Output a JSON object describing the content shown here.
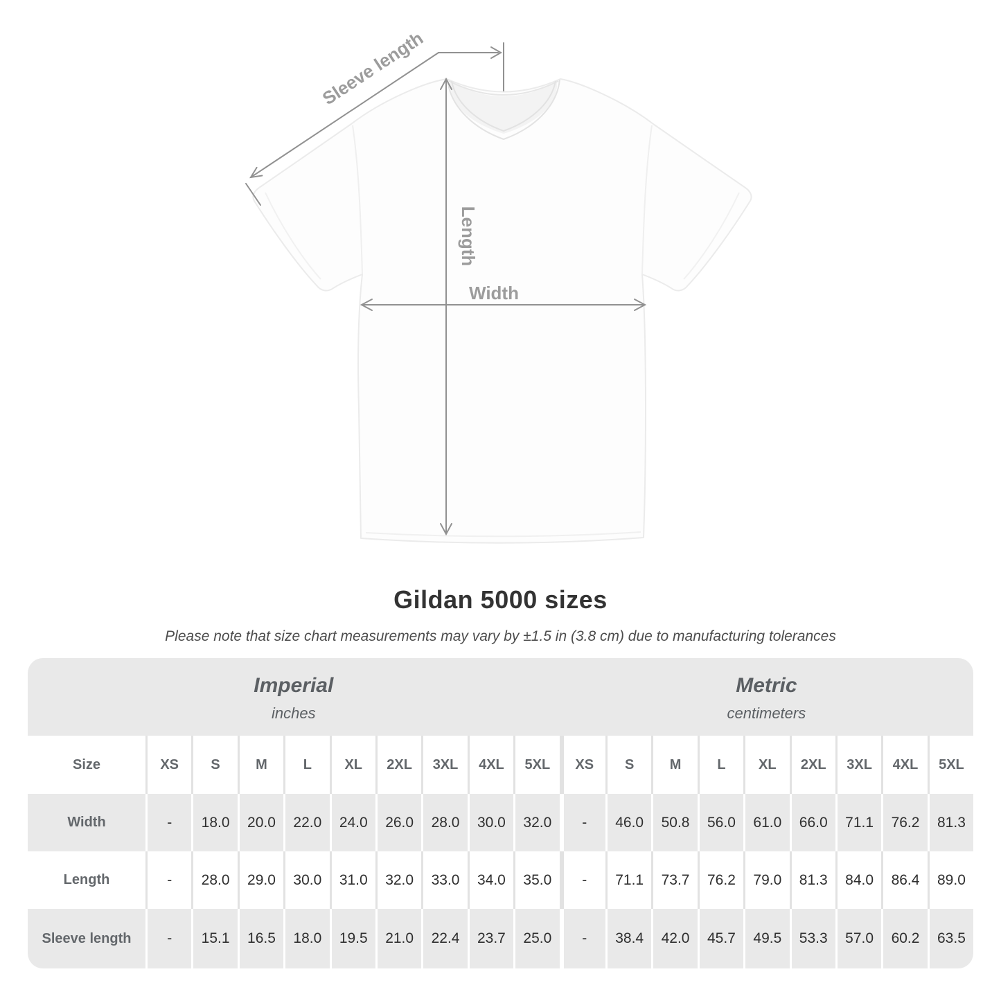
{
  "title": "Gildan 5000 sizes",
  "note": "Please note that size chart measurements may vary by ±1.5 in (3.8 cm) due to manufacturing tolerances",
  "diagram": {
    "sleeve_label": "Sleeve length",
    "length_label": "Length",
    "width_label": "Width"
  },
  "chart_data": {
    "type": "table",
    "title": "Gildan 5000 sizes",
    "row_header": "Size",
    "column_groups": [
      {
        "label": "Imperial",
        "sublabel": "inches",
        "sizes": [
          "XS",
          "S",
          "M",
          "L",
          "XL",
          "2XL",
          "3XL",
          "4XL",
          "5XL"
        ]
      },
      {
        "label": "Metric",
        "sublabel": "centimeters",
        "sizes": [
          "XS",
          "S",
          "M",
          "L",
          "XL",
          "2XL",
          "3XL",
          "4XL",
          "5XL"
        ]
      }
    ],
    "rows": [
      {
        "label": "Width",
        "imperial": [
          "-",
          "18.0",
          "20.0",
          "22.0",
          "24.0",
          "26.0",
          "28.0",
          "30.0",
          "32.0"
        ],
        "metric": [
          "-",
          "46.0",
          "50.8",
          "56.0",
          "61.0",
          "66.0",
          "71.1",
          "76.2",
          "81.3"
        ]
      },
      {
        "label": "Length",
        "imperial": [
          "-",
          "28.0",
          "29.0",
          "30.0",
          "31.0",
          "32.0",
          "33.0",
          "34.0",
          "35.0"
        ],
        "metric": [
          "-",
          "71.1",
          "73.7",
          "76.2",
          "79.0",
          "81.3",
          "84.0",
          "86.4",
          "89.0"
        ]
      },
      {
        "label": "Sleeve length",
        "imperial": [
          "-",
          "15.1",
          "16.5",
          "18.0",
          "19.5",
          "21.0",
          "22.4",
          "23.7",
          "25.0"
        ],
        "metric": [
          "-",
          "38.4",
          "42.0",
          "45.7",
          "49.5",
          "53.3",
          "57.0",
          "60.2",
          "63.5"
        ]
      }
    ]
  },
  "colors": {
    "arrow_gray": "#919191",
    "label_gray": "#9c9c9c",
    "band_gray": "#e9e9e9",
    "header_text": "#63676b",
    "value_text": "#2f2f2f",
    "title_text": "#333333"
  }
}
